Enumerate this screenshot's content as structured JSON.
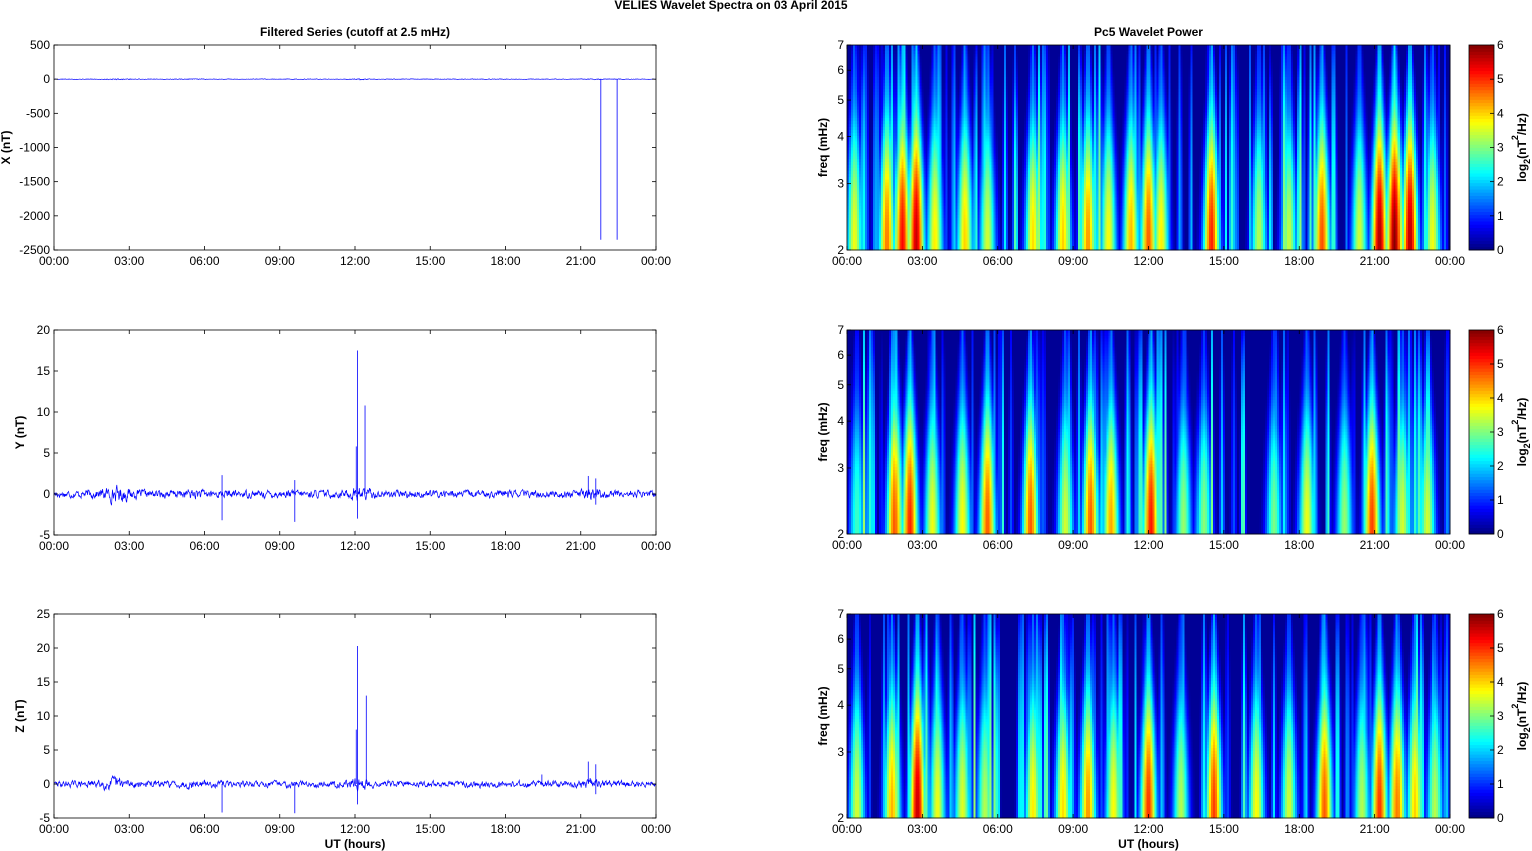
{
  "figure": {
    "suptitle": "VELIES Wavelet Spectra on 03 April     2015"
  },
  "chart_data": [
    {
      "type": "line",
      "title": "Filtered Series (cutoff at 2.5 mHz)",
      "xlabel": "",
      "ylabel": "X (nT)",
      "xlim": [
        0,
        24
      ],
      "ylim": [
        -2500,
        500
      ],
      "xticklabels": [
        "00:00",
        "03:00",
        "06:00",
        "09:00",
        "12:00",
        "15:00",
        "18:00",
        "21:00",
        "00:00"
      ],
      "yticks": [
        -2500,
        -2000,
        -1500,
        -1000,
        -500,
        0,
        500
      ],
      "series_color": "#0000ff",
      "noise_amplitude": 3,
      "spikes": [
        {
          "x": 21.8,
          "y": -2350
        },
        {
          "x": 22.45,
          "y": -2350
        },
        {
          "x": 12.2,
          "y": -15
        }
      ]
    },
    {
      "type": "line",
      "title": "",
      "xlabel": "",
      "ylabel": "Y (nT)",
      "xlim": [
        0,
        24
      ],
      "ylim": [
        -5,
        20
      ],
      "xticklabels": [
        "00:00",
        "03:00",
        "06:00",
        "09:00",
        "12:00",
        "15:00",
        "18:00",
        "21:00",
        "00:00"
      ],
      "yticks": [
        -5,
        0,
        5,
        10,
        15,
        20
      ],
      "series_color": "#0000ff",
      "noise_amplitude": 0.35,
      "spikes": [
        {
          "x": 6.7,
          "y": 2.3
        },
        {
          "x": 6.7,
          "y": -3.2
        },
        {
          "x": 9.6,
          "y": 1.7
        },
        {
          "x": 9.6,
          "y": -3.4
        },
        {
          "x": 12.05,
          "y": 5.8
        },
        {
          "x": 12.1,
          "y": 17.5
        },
        {
          "x": 12.1,
          "y": -3.0
        },
        {
          "x": 12.4,
          "y": 10.8
        },
        {
          "x": 21.3,
          "y": 2.2
        },
        {
          "x": 21.6,
          "y": 1.9
        },
        {
          "x": 21.6,
          "y": -1.3
        }
      ]
    },
    {
      "type": "line",
      "title": "",
      "xlabel": "UT (hours)",
      "ylabel": "Z (nT)",
      "xlim": [
        0,
        24
      ],
      "ylim": [
        -5,
        25
      ],
      "xticklabels": [
        "00:00",
        "03:00",
        "06:00",
        "09:00",
        "12:00",
        "15:00",
        "18:00",
        "21:00",
        "00:00"
      ],
      "yticks": [
        -5,
        0,
        5,
        10,
        15,
        20,
        25
      ],
      "series_color": "#0000ff",
      "noise_amplitude": 0.35,
      "spikes": [
        {
          "x": 6.7,
          "y": -4.2
        },
        {
          "x": 9.6,
          "y": -4.3
        },
        {
          "x": 12.05,
          "y": 8.0
        },
        {
          "x": 12.1,
          "y": 20.3
        },
        {
          "x": 12.1,
          "y": -3.0
        },
        {
          "x": 12.45,
          "y": 13.0
        },
        {
          "x": 19.45,
          "y": 1.4
        },
        {
          "x": 21.3,
          "y": 3.3
        },
        {
          "x": 21.6,
          "y": 2.9
        },
        {
          "x": 21.6,
          "y": -1.5
        }
      ]
    },
    {
      "type": "heatmap",
      "title": "Pc5 Wavelet Power",
      "xlabel": "",
      "ylabel": "freq (mHz)",
      "xlim": [
        0,
        24
      ],
      "ylim": [
        2,
        7
      ],
      "yscale": "log",
      "yticks": [
        2,
        3,
        4,
        5,
        6,
        7
      ],
      "xticklabels": [
        "00:00",
        "03:00",
        "06:00",
        "09:00",
        "12:00",
        "15:00",
        "18:00",
        "21:00",
        "00:00"
      ],
      "clim": [
        0,
        6
      ],
      "colorbar_label": "log",
      "colorbar_sub": "2",
      "colorbar_unit": "(nT",
      "colorbar_sup": "2",
      "colorbar_tail": "/Hz)",
      "colorbar_ticks": [
        0,
        1,
        2,
        3,
        4,
        5,
        6
      ],
      "colormap": "jet",
      "seed": 11,
      "bursts": [
        {
          "t": 0.3,
          "a": 4.2
        },
        {
          "t": 1.6,
          "a": 5.2
        },
        {
          "t": 2.2,
          "a": 6.0
        },
        {
          "t": 2.75,
          "a": 6.4
        },
        {
          "t": 3.5,
          "a": 4.4
        },
        {
          "t": 4.7,
          "a": 4.6
        },
        {
          "t": 5.6,
          "a": 4.0
        },
        {
          "t": 7.4,
          "a": 4.5
        },
        {
          "t": 8.6,
          "a": 4.6
        },
        {
          "t": 9.6,
          "a": 5.0
        },
        {
          "t": 10.4,
          "a": 4.3
        },
        {
          "t": 11.3,
          "a": 4.8
        },
        {
          "t": 12.0,
          "a": 5.4
        },
        {
          "t": 12.5,
          "a": 4.4
        },
        {
          "t": 14.5,
          "a": 5.8
        },
        {
          "t": 16.4,
          "a": 3.8
        },
        {
          "t": 17.6,
          "a": 3.9
        },
        {
          "t": 18.9,
          "a": 5.5
        },
        {
          "t": 20.4,
          "a": 4.0
        },
        {
          "t": 21.2,
          "a": 6.6
        },
        {
          "t": 21.8,
          "a": 6.8
        },
        {
          "t": 22.4,
          "a": 6.5
        },
        {
          "t": 23.3,
          "a": 4.2
        }
      ]
    },
    {
      "type": "heatmap",
      "title": "",
      "xlabel": "",
      "ylabel": "freq (mHz)",
      "xlim": [
        0,
        24
      ],
      "ylim": [
        2,
        7
      ],
      "yscale": "log",
      "yticks": [
        2,
        3,
        4,
        5,
        6,
        7
      ],
      "xticklabels": [
        "00:00",
        "03:00",
        "06:00",
        "09:00",
        "12:00",
        "15:00",
        "18:00",
        "21:00",
        "00:00"
      ],
      "clim": [
        0,
        6
      ],
      "colorbar_label": "log",
      "colorbar_sub": "2",
      "colorbar_unit": "(nT",
      "colorbar_sup": "2",
      "colorbar_tail": "/Hz)",
      "colorbar_ticks": [
        0,
        1,
        2,
        3,
        4,
        5,
        6
      ],
      "colormap": "jet",
      "seed": 23,
      "bursts": [
        {
          "t": 0.4,
          "a": 3.0
        },
        {
          "t": 1.9,
          "a": 5.4
        },
        {
          "t": 2.5,
          "a": 5.8
        },
        {
          "t": 3.4,
          "a": 4.2
        },
        {
          "t": 4.6,
          "a": 4.3
        },
        {
          "t": 5.6,
          "a": 5.4
        },
        {
          "t": 7.3,
          "a": 5.4
        },
        {
          "t": 8.7,
          "a": 4.0
        },
        {
          "t": 9.7,
          "a": 5.4
        },
        {
          "t": 10.5,
          "a": 4.9
        },
        {
          "t": 12.1,
          "a": 5.9
        },
        {
          "t": 13.4,
          "a": 3.6
        },
        {
          "t": 14.2,
          "a": 3.5
        },
        {
          "t": 17.0,
          "a": 3.4
        },
        {
          "t": 18.3,
          "a": 4.2
        },
        {
          "t": 19.8,
          "a": 3.6
        },
        {
          "t": 20.9,
          "a": 5.6
        },
        {
          "t": 22.1,
          "a": 4.0
        },
        {
          "t": 23.1,
          "a": 4.0
        }
      ]
    },
    {
      "type": "heatmap",
      "title": "",
      "xlabel": "UT (hours)",
      "ylabel": "freq (mHz)",
      "xlim": [
        0,
        24
      ],
      "ylim": [
        2,
        7
      ],
      "yscale": "log",
      "yticks": [
        2,
        3,
        4,
        5,
        6,
        7
      ],
      "xticklabels": [
        "00:00",
        "03:00",
        "06:00",
        "09:00",
        "12:00",
        "15:00",
        "18:00",
        "21:00",
        "00:00"
      ],
      "clim": [
        0,
        6
      ],
      "colorbar_label": "log",
      "colorbar_sub": "2",
      "colorbar_unit": "(nT",
      "colorbar_sup": "2",
      "colorbar_tail": "/Hz)",
      "colorbar_ticks": [
        0,
        1,
        2,
        3,
        4,
        5,
        6
      ],
      "colormap": "jet",
      "seed": 37,
      "bursts": [
        {
          "t": 0.4,
          "a": 4.0
        },
        {
          "t": 1.8,
          "a": 4.8
        },
        {
          "t": 2.8,
          "a": 6.4
        },
        {
          "t": 3.6,
          "a": 4.2
        },
        {
          "t": 4.6,
          "a": 4.1
        },
        {
          "t": 5.5,
          "a": 3.8
        },
        {
          "t": 7.4,
          "a": 4.4
        },
        {
          "t": 8.6,
          "a": 4.5
        },
        {
          "t": 9.6,
          "a": 5.0
        },
        {
          "t": 10.6,
          "a": 4.3
        },
        {
          "t": 12.0,
          "a": 5.7
        },
        {
          "t": 13.3,
          "a": 3.8
        },
        {
          "t": 14.6,
          "a": 5.6
        },
        {
          "t": 16.3,
          "a": 4.3
        },
        {
          "t": 17.6,
          "a": 4.0
        },
        {
          "t": 19.0,
          "a": 5.4
        },
        {
          "t": 20.5,
          "a": 3.8
        },
        {
          "t": 21.2,
          "a": 5.7
        },
        {
          "t": 21.9,
          "a": 5.2
        },
        {
          "t": 22.6,
          "a": 4.6
        },
        {
          "t": 23.4,
          "a": 3.8
        }
      ]
    }
  ]
}
